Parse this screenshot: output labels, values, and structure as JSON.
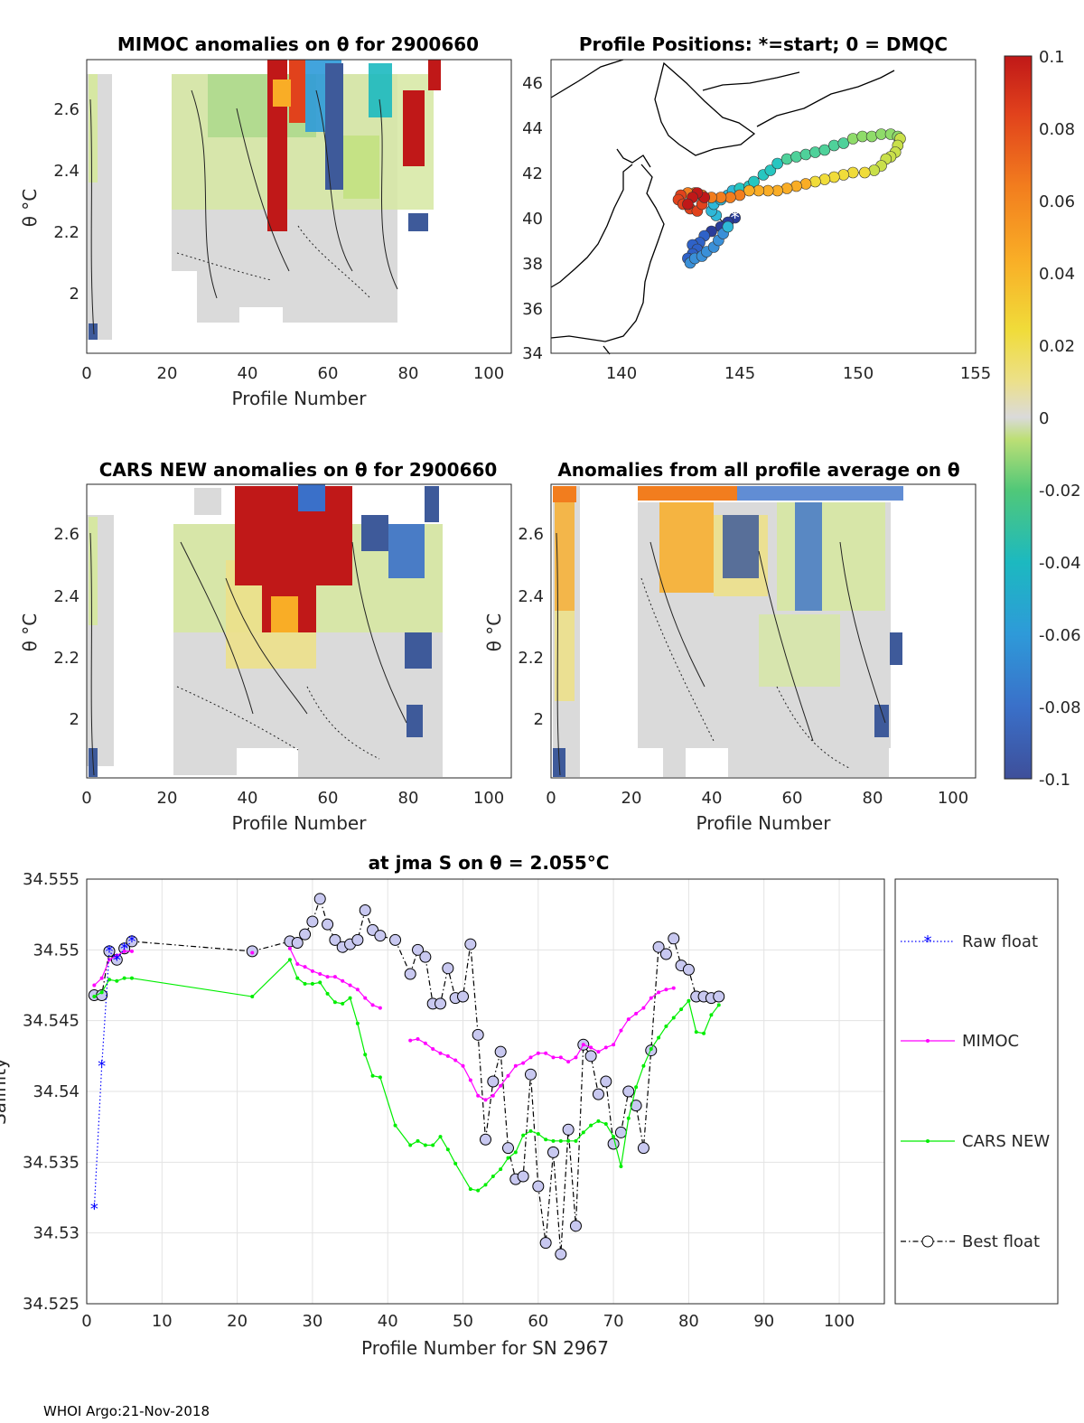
{
  "footer": "WHOI Argo:21-Nov-2018",
  "panels": {
    "mimoc_anom": {
      "title": "MIMOC anomalies on θ  for 2900660",
      "xlabel": "Profile Number",
      "ylabel": "θ °C",
      "xticks": [
        "0",
        "20",
        "40",
        "60",
        "80",
        "100"
      ],
      "yticks": [
        "2",
        "2.2",
        "2.4",
        "2.6"
      ]
    },
    "positions": {
      "title": "Profile Positions: *=start; 0 = DMQC",
      "xticks": [
        "140",
        "145",
        "150",
        "155"
      ],
      "yticks": [
        "34",
        "36",
        "38",
        "40",
        "42",
        "44",
        "46"
      ]
    },
    "cars_anom": {
      "title": "CARS NEW anomalies on θ for 2900660",
      "xlabel": "Profile Number",
      "ylabel": "θ °C",
      "xticks": [
        "0",
        "20",
        "40",
        "60",
        "80",
        "100"
      ],
      "yticks": [
        "2",
        "2.2",
        "2.4",
        "2.6"
      ]
    },
    "avg_anom": {
      "title": "Anomalies from all profile average on θ",
      "xlabel": "Profile Number",
      "ylabel": "θ °C",
      "xticks": [
        "0",
        "20",
        "40",
        "60",
        "80",
        "100"
      ],
      "yticks": [
        "2",
        "2.2",
        "2.4",
        "2.6"
      ]
    },
    "colorbar": {
      "ticks": [
        "0.1",
        "0.08",
        "0.06",
        "0.04",
        "0.02",
        "0",
        "-0.02",
        "-0.04",
        "-0.06",
        "-0.08",
        "-0.1"
      ],
      "colors": [
        "#3e4f9a",
        "#3a8fd9",
        "#1cb9c0",
        "#51c878",
        "#bddf75",
        "#dadada",
        "#f0dc3a",
        "#f9ad26",
        "#f27d1e",
        "#e1421c",
        "#c01818"
      ]
    }
  },
  "chart_data": {
    "type": "line",
    "title": "at jma S on θ = 2.055°C",
    "xlabel": "Profile Number for SN 2967",
    "ylabel": "Salinity",
    "xlim": [
      0,
      106
    ],
    "ylim": [
      34.525,
      34.555
    ],
    "xticks": [
      0,
      10,
      20,
      30,
      40,
      50,
      60,
      70,
      80,
      90,
      100
    ],
    "yticks": [
      34.525,
      34.53,
      34.535,
      34.54,
      34.545,
      34.55,
      34.555
    ],
    "ytick_labels": [
      "34.525",
      "34.53",
      "34.535",
      "34.54",
      "34.545",
      "34.55",
      "34.555"
    ],
    "legend": [
      "Raw float",
      "MIMOC",
      "CARS NEW",
      "Best float"
    ],
    "series": [
      {
        "name": "Raw float",
        "color": "#0000ff",
        "x": [
          1,
          2,
          3,
          4,
          5,
          6
        ],
        "y": [
          34.5317,
          34.5418,
          34.5499,
          34.5493,
          34.5501,
          34.5506
        ]
      },
      {
        "name": "MIMOC",
        "color": "#ff00ff",
        "x": [
          1,
          2,
          3,
          4,
          5,
          6,
          22,
          27,
          28,
          29,
          30,
          31,
          32,
          33,
          34,
          35,
          36,
          37,
          38,
          39,
          43,
          44,
          45,
          46,
          47,
          48,
          49,
          50,
          51,
          52,
          53,
          54,
          55,
          56,
          57,
          58,
          59,
          60,
          61,
          62,
          63,
          64,
          65,
          66,
          67,
          68,
          69,
          70,
          71,
          72,
          73,
          74,
          75,
          76,
          77,
          78
        ],
        "y": [
          34.5475,
          34.548,
          34.5493,
          34.5496,
          34.5499,
          34.5499,
          34.5498,
          34.5501,
          34.549,
          34.5488,
          34.5485,
          34.5483,
          34.5481,
          34.5481,
          34.5478,
          34.5475,
          34.5472,
          34.5466,
          34.5461,
          34.5459,
          34.5436,
          34.5437,
          34.5434,
          34.543,
          34.5427,
          34.5425,
          34.5422,
          34.5418,
          34.5408,
          34.5397,
          34.5394,
          34.5397,
          34.5404,
          34.5411,
          34.5418,
          34.542,
          34.5424,
          34.5427,
          34.5427,
          34.5424,
          34.5424,
          34.5421,
          34.5424,
          34.5433,
          34.5431,
          34.5428,
          34.5431,
          34.5433,
          34.5443,
          34.5451,
          34.5455,
          34.5459,
          34.5466,
          34.547,
          34.5472,
          34.5473
        ]
      },
      {
        "name": "CARS NEW",
        "color": "#00ee00",
        "x": [
          1,
          2,
          3,
          4,
          5,
          6,
          22,
          27,
          28,
          29,
          30,
          31,
          32,
          33,
          34,
          35,
          36,
          37,
          38,
          39,
          41,
          43,
          44,
          45,
          46,
          47,
          48,
          49,
          51,
          52,
          53,
          54,
          55,
          56,
          57,
          58,
          59,
          60,
          61,
          62,
          63,
          64,
          65,
          66,
          67,
          68,
          69,
          70,
          71,
          72,
          73,
          74,
          75,
          76,
          77,
          78,
          79,
          80,
          81,
          82,
          83,
          84
        ],
        "y": [
          34.5467,
          34.547,
          34.5479,
          34.5478,
          34.548,
          34.548,
          34.5467,
          34.5493,
          34.548,
          34.5476,
          34.5476,
          34.5477,
          34.5469,
          34.5463,
          34.5462,
          34.5466,
          34.5448,
          34.5426,
          34.5411,
          34.541,
          34.5376,
          34.5362,
          34.5365,
          34.5362,
          34.5362,
          34.5368,
          34.5359,
          34.5349,
          34.5331,
          34.533,
          34.5334,
          34.534,
          34.5345,
          34.5353,
          34.5357,
          34.5369,
          34.5372,
          34.537,
          34.5366,
          34.5365,
          34.5365,
          34.5365,
          34.5365,
          34.5371,
          34.5376,
          34.5379,
          34.5377,
          34.5368,
          34.5347,
          34.5381,
          34.5403,
          34.5418,
          34.543,
          34.5438,
          34.5446,
          34.5452,
          34.5458,
          34.5464,
          34.5442,
          34.5441,
          34.5454,
          34.5461
        ]
      },
      {
        "name": "Best float",
        "color": "#000000",
        "x": [
          1,
          2,
          3,
          4,
          5,
          6,
          22,
          27,
          28,
          29,
          30,
          31,
          32,
          33,
          34,
          35,
          36,
          37,
          38,
          39,
          41,
          43,
          44,
          45,
          46,
          47,
          48,
          49,
          50,
          51,
          52,
          53,
          54,
          55,
          56,
          57,
          58,
          59,
          60,
          61,
          62,
          63,
          64,
          65,
          66,
          67,
          68,
          69,
          70,
          71,
          72,
          73,
          74,
          75,
          76,
          77,
          78,
          79,
          80,
          81,
          82,
          83,
          84
        ],
        "y": [
          34.5468,
          34.5468,
          34.5499,
          34.5493,
          34.5501,
          34.5506,
          34.5499,
          34.5506,
          34.5505,
          34.5511,
          34.552,
          34.5536,
          34.5518,
          34.5507,
          34.5502,
          34.5504,
          34.5507,
          34.5528,
          34.5514,
          34.551,
          34.5507,
          34.5483,
          34.55,
          34.5495,
          34.5462,
          34.5462,
          34.5487,
          34.5466,
          34.5467,
          34.5504,
          34.544,
          34.5366,
          34.5407,
          34.5428,
          34.536,
          34.5338,
          34.534,
          34.5412,
          34.5333,
          34.5293,
          34.5357,
          34.5285,
          34.5373,
          34.5305,
          34.5433,
          34.5425,
          34.5398,
          34.5407,
          34.5363,
          34.5371,
          34.54,
          34.539,
          34.536,
          34.5429,
          34.5502,
          34.5497,
          34.5508,
          34.5489,
          34.5486,
          34.5467,
          34.5467,
          34.5466,
          34.5467
        ]
      }
    ]
  }
}
